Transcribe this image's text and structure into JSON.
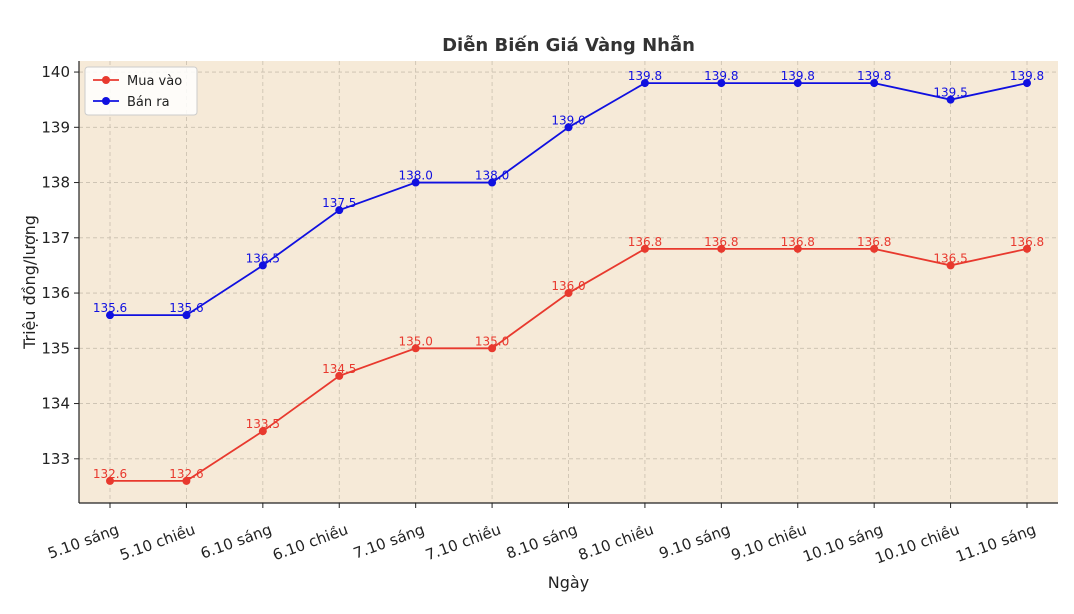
{
  "chart_data": {
    "type": "line",
    "title": "Diễn Biến Giá Vàng Nhẫn",
    "xlabel": "Ngày",
    "ylabel": "Triệu đồng/lượng",
    "categories": [
      "5.10 sáng",
      "5.10 chiều",
      "6.10 sáng",
      "6.10 chiều",
      "7.10 sáng",
      "7.10 chiều",
      "8.10 sáng",
      "8.10 chiều",
      "9.10 sáng",
      "9.10 chiều",
      "10.10 sáng",
      "10.10 chiều",
      "11.10 sáng"
    ],
    "y_ticks": [
      133,
      134,
      135,
      136,
      137,
      138,
      139,
      140
    ],
    "ylim": [
      132.2,
      140.2
    ],
    "grid": true,
    "legend_position": "top-left",
    "plot_background": "#f6ead8",
    "series": [
      {
        "name": "Mua vào",
        "color": "#e8392e",
        "values": [
          132.6,
          132.6,
          133.5,
          134.5,
          135.0,
          135.0,
          136.0,
          136.8,
          136.8,
          136.8,
          136.8,
          136.5,
          136.8
        ],
        "labels": [
          "132.6",
          "132.6",
          "133.5",
          "134.5",
          "135.0",
          "135.0",
          "136.0",
          "136.8",
          "136.8",
          "136.8",
          "136.8",
          "136.5",
          "136.8"
        ]
      },
      {
        "name": "Bán ra",
        "color": "#1010e0",
        "values": [
          135.6,
          135.6,
          136.5,
          137.5,
          138.0,
          138.0,
          139.0,
          139.8,
          139.8,
          139.8,
          139.8,
          139.5,
          139.8
        ],
        "labels": [
          "135.6",
          "135.6",
          "136.5",
          "137.5",
          "138.0",
          "138.0",
          "139.0",
          "139.8",
          "139.8",
          "139.8",
          "139.8",
          "139.5",
          "139.8"
        ]
      }
    ]
  }
}
